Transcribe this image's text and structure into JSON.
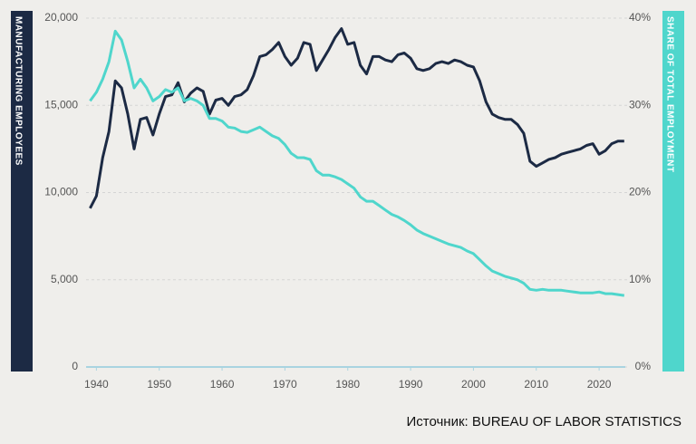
{
  "chart_data": {
    "type": "line",
    "x": [
      1939,
      1940,
      1941,
      1942,
      1943,
      1944,
      1945,
      1946,
      1947,
      1948,
      1949,
      1950,
      1951,
      1952,
      1953,
      1954,
      1955,
      1956,
      1957,
      1958,
      1959,
      1960,
      1961,
      1962,
      1963,
      1964,
      1965,
      1966,
      1967,
      1968,
      1969,
      1970,
      1971,
      1972,
      1973,
      1974,
      1975,
      1976,
      1977,
      1978,
      1979,
      1980,
      1981,
      1982,
      1983,
      1984,
      1985,
      1986,
      1987,
      1988,
      1989,
      1990,
      1991,
      1992,
      1993,
      1994,
      1995,
      1996,
      1997,
      1998,
      1999,
      2000,
      2001,
      2002,
      2003,
      2004,
      2005,
      2006,
      2007,
      2008,
      2009,
      2010,
      2011,
      2012,
      2013,
      2014,
      2015,
      2016,
      2017,
      2018,
      2019,
      2020,
      2021,
      2022,
      2023,
      2024
    ],
    "series": [
      {
        "name": "MANUFACTURING EMPLOYEES",
        "color": "#1c2a44",
        "axis": "y",
        "values": [
          9100,
          9800,
          12000,
          13500,
          16400,
          16000,
          14500,
          12500,
          14200,
          14300,
          13300,
          14500,
          15500,
          15600,
          16300,
          15200,
          15700,
          16000,
          15800,
          14500,
          15300,
          15400,
          15000,
          15500,
          15600,
          15900,
          16700,
          17800,
          17900,
          18200,
          18600,
          17800,
          17300,
          17700,
          18600,
          18500,
          17000,
          17600,
          18200,
          18900,
          19400,
          18500,
          18600,
          17300,
          16800,
          17800,
          17800,
          17600,
          17500,
          17900,
          18000,
          17700,
          17100,
          17000,
          17100,
          17400,
          17500,
          17400,
          17600,
          17500,
          17300,
          17200,
          16400,
          15200,
          14500,
          14300,
          14200,
          14200,
          13900,
          13400,
          11800,
          11500,
          11700,
          11900,
          12000,
          12200,
          12300,
          12400,
          12500,
          12700,
          12800,
          12200,
          12400,
          12800,
          12950,
          12950
        ]
      },
      {
        "name": "SHARE OF TOTAL EMPLOYMENT",
        "color": "#4fd6cc",
        "axis": "y2",
        "values": [
          30.5,
          31.5,
          33,
          35,
          38.5,
          37.5,
          35,
          32,
          33,
          32,
          30.5,
          31,
          31.8,
          31.5,
          32,
          30.5,
          30.8,
          30.5,
          30,
          28.5,
          28.5,
          28.2,
          27.5,
          27.4,
          27,
          26.9,
          27.2,
          27.5,
          27,
          26.5,
          26.2,
          25.5,
          24.5,
          24,
          24,
          23.8,
          22.5,
          22,
          22,
          21.8,
          21.5,
          21,
          20.5,
          19.5,
          19,
          19,
          18.5,
          18,
          17.5,
          17.2,
          16.8,
          16.3,
          15.7,
          15.3,
          15,
          14.7,
          14.4,
          14.1,
          13.9,
          13.7,
          13.3,
          13,
          12.3,
          11.6,
          11,
          10.7,
          10.4,
          10.2,
          10,
          9.6,
          8.9,
          8.8,
          8.9,
          8.8,
          8.8,
          8.8,
          8.7,
          8.6,
          8.5,
          8.5,
          8.5,
          8.6,
          8.4,
          8.4,
          8.3,
          8.2
        ]
      }
    ],
    "xlim": [
      1938,
      2026
    ],
    "xticks": [
      1940,
      1950,
      1960,
      1970,
      1980,
      1990,
      2000,
      2010,
      2020
    ],
    "ylim": [
      0,
      20000
    ],
    "yticks": [
      0,
      {
        "value": 5000,
        "label": "5,000"
      },
      {
        "value": 10000,
        "label": "10,000"
      },
      {
        "value": 15000,
        "label": "15,000"
      },
      {
        "value": 20000,
        "label": "20,000"
      }
    ],
    "y2lim": [
      0,
      40
    ],
    "y2ticks": [
      {
        "value": 0,
        "label": "0%"
      },
      {
        "value": 10,
        "label": "10%"
      },
      {
        "value": 20,
        "label": "20%"
      },
      {
        "value": 30,
        "label": "30%"
      },
      {
        "value": 40,
        "label": "40%"
      }
    ],
    "grid": true,
    "source": "Источник: BUREAU OF LABOR STATISTICS"
  }
}
